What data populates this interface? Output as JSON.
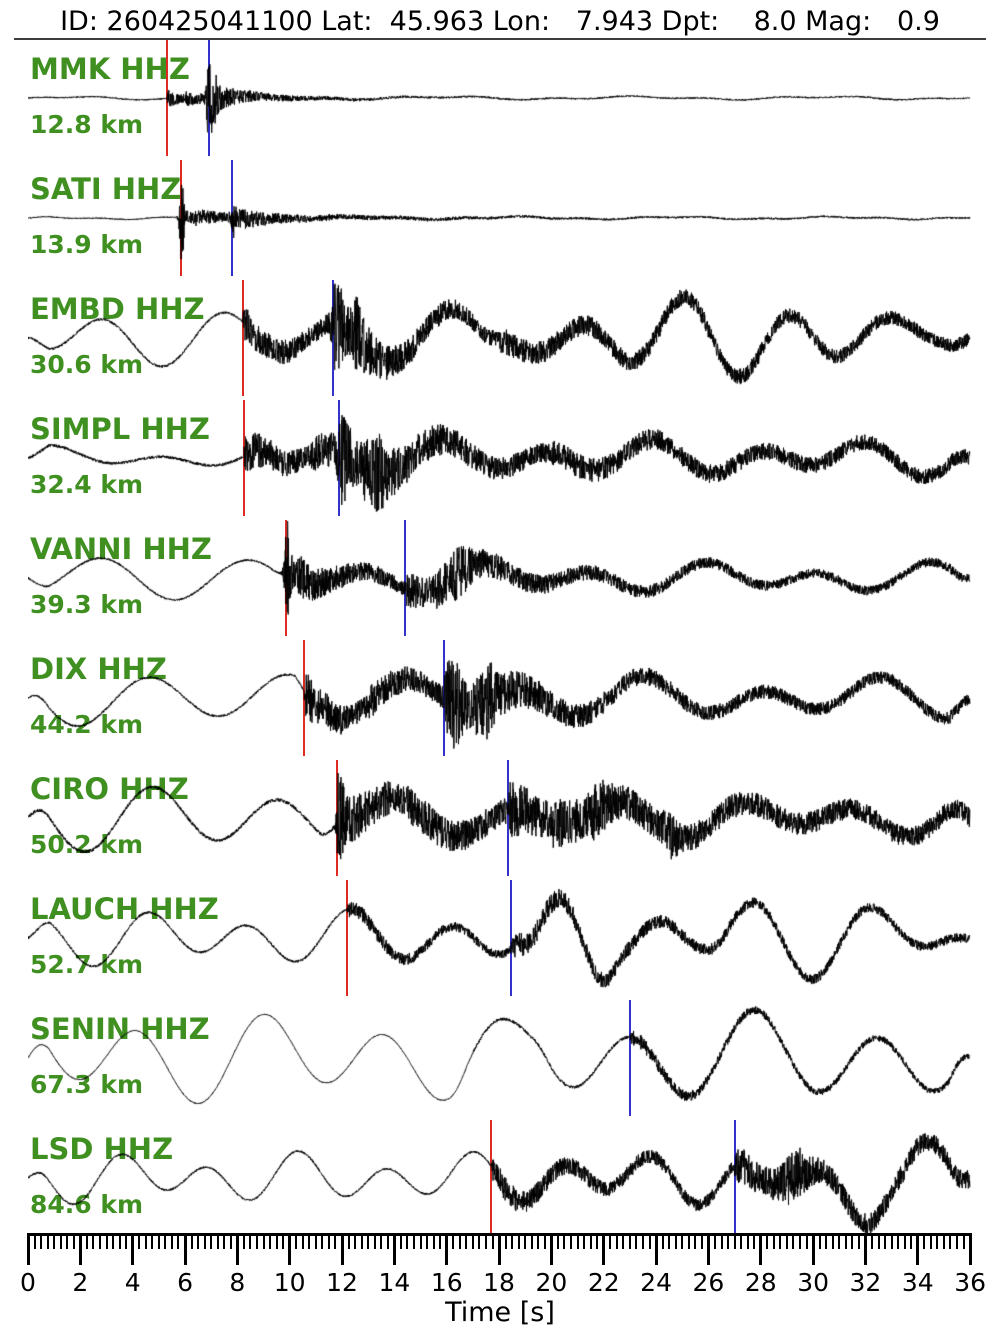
{
  "title": "ID: 260425041100 Lat:  45.963 Lon:   7.943 Dpt:    8.0 Mag:   0.9",
  "event": {
    "id": "260425041100",
    "lat": "45.963",
    "lon": "7.943",
    "depth_km": "8.0",
    "magnitude": "0.9"
  },
  "chart_data": {
    "type": "line",
    "subtype": "seismogram-record-section",
    "xlabel": "Time [s]",
    "xlim": [
      0,
      36
    ],
    "x_ticks": [
      0,
      2,
      4,
      6,
      8,
      10,
      12,
      14,
      16,
      18,
      20,
      22,
      24,
      26,
      28,
      30,
      32,
      34,
      36
    ],
    "x_minor_step": 0.25,
    "grid": false,
    "legend": "none",
    "colors": {
      "trace": "#000000",
      "p_pick": "#e02b24",
      "s_pick": "#3333cc",
      "station_label": "#3f9020",
      "title": "#000000"
    },
    "stations": [
      {
        "label": "MMK HHZ",
        "distance": "12.8 km",
        "distance_km": 12.8,
        "p_pick_s": 5.3,
        "s_pick_s": 6.9,
        "waveform": {
          "lp": [
            {
              "amp": 1.2,
              "period": 7.3,
              "phase": 0.5
            },
            {
              "amp": 0.8,
              "period": 2.9,
              "phase": 2.1
            }
          ],
          "hf": [
            {
              "t0": 0,
              "t1": 5.3,
              "amp": 0.7
            },
            {
              "t0": 5.3,
              "t1": 36,
              "amp": 0.8
            }
          ],
          "bursts": [
            {
              "t": 5.3,
              "amp": 9,
              "tau": 0.8
            },
            {
              "t": 6.0,
              "amp": 4,
              "tau": 2.0
            },
            {
              "t": 6.9,
              "amp": 10,
              "tau": 0.7
            },
            {
              "t": 7.2,
              "amp": 4,
              "tau": 3
            }
          ],
          "spikes": [
            {
              "t": 6.93,
              "amp": 48,
              "w": 0.1
            },
            {
              "t": 7.15,
              "amp": 18,
              "w": 0.08
            }
          ]
        }
      },
      {
        "label": "SATI HHZ",
        "distance": "13.9 km",
        "distance_km": 13.9,
        "p_pick_s": 5.85,
        "s_pick_s": 7.8,
        "waveform": {
          "lp": [
            {
              "amp": 1.0,
              "period": 6.1,
              "phase": 1.2
            },
            {
              "amp": 0.6,
              "period": 2.3,
              "phase": 0.3
            }
          ],
          "hf": [
            {
              "t0": 0,
              "t1": 5.85,
              "amp": 0.6
            },
            {
              "t0": 5.85,
              "t1": 36,
              "amp": 0.9
            }
          ],
          "bursts": [
            {
              "t": 5.85,
              "amp": 8,
              "tau": 1.2
            },
            {
              "t": 6.3,
              "amp": 3,
              "tau": 4
            },
            {
              "t": 7.8,
              "amp": 7,
              "tau": 0.9
            },
            {
              "t": 8.1,
              "amp": 2.5,
              "tau": 5
            }
          ],
          "spikes": [
            {
              "t": 5.88,
              "amp": 55,
              "w": 0.09
            },
            {
              "t": 7.85,
              "amp": 12,
              "w": 0.1
            }
          ]
        }
      },
      {
        "label": "EMBD HHZ",
        "distance": "30.6 km",
        "distance_km": 30.6,
        "p_pick_s": 8.2,
        "s_pick_s": 11.65,
        "waveform": {
          "lp": [
            {
              "amp": 20,
              "period": 4.4,
              "phase": 3.6
            },
            {
              "amp": 9,
              "period": 7.9,
              "phase": 1.0
            },
            {
              "amp": 14,
              "period": 3.5,
              "phase": 0.2,
              "t0": 17,
              "t1": 36
            }
          ],
          "hf": [
            {
              "t0": 0,
              "t1": 8.2,
              "amp": 1.2
            },
            {
              "t0": 8.2,
              "t1": 36,
              "amp": 6
            }
          ],
          "bursts": [
            {
              "t": 8.2,
              "amp": 12,
              "tau": 2.5
            },
            {
              "t": 11.65,
              "amp": 22,
              "tau": 1.1
            },
            {
              "t": 12.3,
              "amp": 12,
              "tau": 3
            },
            {
              "t": 18,
              "amp": 5,
              "tau": 10
            }
          ],
          "spikes": [
            {
              "t": 11.8,
              "amp": 18,
              "w": 0.3
            },
            {
              "t": 12.6,
              "amp": 14,
              "w": 0.2
            }
          ]
        }
      },
      {
        "label": "SIMPL HHZ",
        "distance": "32.4 km",
        "distance_km": 32.4,
        "p_pick_s": 8.25,
        "s_pick_s": 11.9,
        "waveform": {
          "lp": [
            {
              "amp": 8,
              "period": 4.6,
              "phase": 0.8,
              "t0": 0,
              "t1": 9
            },
            {
              "amp": 12,
              "period": 4.1,
              "phase": 2.6,
              "t0": 9,
              "t1": 36
            },
            {
              "amp": 7,
              "period": 7.3,
              "phase": 0.1
            }
          ],
          "hf": [
            {
              "t0": 0,
              "t1": 8.25,
              "amp": 1.4
            },
            {
              "t0": 8.25,
              "t1": 36,
              "amp": 7
            }
          ],
          "bursts": [
            {
              "t": 8.25,
              "amp": 14,
              "tau": 2
            },
            {
              "t": 10.8,
              "amp": 8,
              "tau": 4
            },
            {
              "t": 11.9,
              "amp": 22,
              "tau": 1.4
            },
            {
              "t": 12.8,
              "amp": 10,
              "tau": 4
            },
            {
              "t": 20,
              "amp": 4,
              "tau": 8
            }
          ],
          "spikes": [
            {
              "t": 11.95,
              "amp": 20,
              "w": 0.25
            },
            {
              "t": 13.4,
              "amp": 14,
              "w": 0.2
            }
          ]
        }
      },
      {
        "label": "VANNI HHZ",
        "distance": "39.3 km",
        "distance_km": 39.3,
        "p_pick_s": 9.85,
        "s_pick_s": 14.4,
        "waveform": {
          "lp": [
            {
              "amp": 16,
              "period": 5.3,
              "phase": 4.4,
              "t0": 0,
              "t1": 10
            },
            {
              "amp": 10,
              "period": 4.3,
              "phase": 1.5,
              "t0": 10,
              "t1": 36
            },
            {
              "amp": 6,
              "period": 8.3,
              "phase": 0.3
            }
          ],
          "hf": [
            {
              "t0": 0,
              "t1": 9.85,
              "amp": 1.0
            },
            {
              "t0": 9.85,
              "t1": 36,
              "amp": 4.5
            }
          ],
          "bursts": [
            {
              "t": 9.85,
              "amp": 14,
              "tau": 1.2
            },
            {
              "t": 10.3,
              "amp": 8,
              "tau": 4
            },
            {
              "t": 14.4,
              "amp": 12,
              "tau": 2
            },
            {
              "t": 15.5,
              "amp": 8,
              "tau": 5
            }
          ],
          "spikes": [
            {
              "t": 9.9,
              "amp": 42,
              "w": 0.12
            },
            {
              "t": 16.5,
              "amp": 10,
              "w": 0.4
            }
          ]
        }
      },
      {
        "label": "DIX HHZ",
        "distance": "44.2 km",
        "distance_km": 44.2,
        "p_pick_s": 10.55,
        "s_pick_s": 15.9,
        "waveform": {
          "lp": [
            {
              "amp": 26,
              "period": 5.6,
              "phase": 2.8,
              "t0": 0,
              "t1": 11
            },
            {
              "amp": 14,
              "period": 4.6,
              "phase": 0.9,
              "t0": 11,
              "t1": 36
            },
            {
              "amp": 8,
              "period": 8.1,
              "phase": 2.0
            }
          ],
          "hf": [
            {
              "t0": 0,
              "t1": 10.55,
              "amp": 1.1
            },
            {
              "t0": 10.55,
              "t1": 36,
              "amp": 6
            }
          ],
          "bursts": [
            {
              "t": 10.55,
              "amp": 18,
              "tau": 2
            },
            {
              "t": 13,
              "amp": 6,
              "tau": 6
            },
            {
              "t": 15.9,
              "amp": 22,
              "tau": 1.6
            },
            {
              "t": 17,
              "amp": 10,
              "tau": 4
            }
          ],
          "spikes": [
            {
              "t": 16.3,
              "amp": 18,
              "w": 0.3
            },
            {
              "t": 17.6,
              "amp": 14,
              "w": 0.25
            }
          ]
        }
      },
      {
        "label": "CIRO HHZ",
        "distance": "50.2 km",
        "distance_km": 50.2,
        "p_pick_s": 11.8,
        "s_pick_s": 18.35,
        "waveform": {
          "lp": [
            {
              "amp": 26,
              "period": 4.9,
              "phase": 1.9,
              "t0": 0,
              "t1": 12
            },
            {
              "amp": 13,
              "period": 4.4,
              "phase": 0.4,
              "t0": 12,
              "t1": 36
            },
            {
              "amp": 8,
              "period": 7.7,
              "phase": 3.1
            }
          ],
          "hf": [
            {
              "t0": 0,
              "t1": 11.8,
              "amp": 1.6
            },
            {
              "t0": 11.8,
              "t1": 36,
              "amp": 9
            }
          ],
          "bursts": [
            {
              "t": 11.8,
              "amp": 20,
              "tau": 2.2
            },
            {
              "t": 14.5,
              "amp": 6,
              "tau": 6
            },
            {
              "t": 18.35,
              "amp": 16,
              "tau": 2
            },
            {
              "t": 20,
              "amp": 8,
              "tau": 6
            }
          ],
          "spikes": [
            {
              "t": 11.9,
              "amp": 26,
              "w": 0.15
            },
            {
              "t": 21.8,
              "amp": 12,
              "w": 0.4
            },
            {
              "t": 24.5,
              "amp": 10,
              "w": 0.3
            }
          ]
        }
      },
      {
        "label": "LAUCH HHZ",
        "distance": "52.7 km",
        "distance_km": 52.7,
        "p_pick_s": 12.2,
        "s_pick_s": 18.45,
        "waveform": {
          "lp": [
            {
              "amp": 20,
              "period": 3.9,
              "phase": 0.6
            },
            {
              "amp": 9,
              "period": 6.9,
              "phase": 2.8
            },
            {
              "amp": 16,
              "period": 2.9,
              "phase": 1.1,
              "t0": 18.5,
              "t1": 23
            },
            {
              "amp": 14,
              "period": 5.3,
              "phase": 0.2,
              "t0": 26,
              "t1": 36
            }
          ],
          "hf": [
            {
              "t0": 0,
              "t1": 12.2,
              "amp": 1.2
            },
            {
              "t0": 12.2,
              "t1": 18.45,
              "amp": 3.5
            },
            {
              "t0": 18.45,
              "t1": 36,
              "amp": 4.5
            }
          ],
          "bursts": [
            {
              "t": 12.2,
              "amp": 5,
              "tau": 3
            },
            {
              "t": 18.45,
              "amp": 8,
              "tau": 4
            }
          ],
          "spikes": []
        }
      },
      {
        "label": "SENIN HHZ",
        "distance": "67.3 km",
        "distance_km": 67.3,
        "p_pick_s": null,
        "s_pick_s": 23.0,
        "waveform": {
          "lp": [
            {
              "amp": 34,
              "period": 4.7,
              "phase": 2.2
            },
            {
              "amp": 14,
              "period": 8.9,
              "phase": 0.7
            },
            {
              "amp": 10,
              "period": 3.4,
              "phase": 1.6,
              "t0": 16,
              "t1": 20
            }
          ],
          "hf": [
            {
              "t0": 0,
              "t1": 17,
              "amp": 0.5
            },
            {
              "t0": 17,
              "t1": 23,
              "amp": 1.5
            },
            {
              "t0": 23,
              "t1": 36,
              "amp": 3
            }
          ],
          "bursts": [
            {
              "t": 23.0,
              "amp": 5,
              "tau": 3
            }
          ],
          "spikes": []
        }
      },
      {
        "label": "LSD HHZ",
        "distance": "84.6 km",
        "distance_km": 84.6,
        "p_pick_s": 17.7,
        "s_pick_s": 27.0,
        "waveform": {
          "lp": [
            {
              "amp": 18,
              "period": 3.4,
              "phase": 1.4
            },
            {
              "amp": 9,
              "period": 6.1,
              "phase": 3.3
            },
            {
              "amp": 16,
              "period": 4.9,
              "phase": 0.9,
              "t0": 27,
              "t1": 36
            },
            {
              "amp": 24,
              "period": 6.4,
              "phase": -0.39,
              "t0": 29,
              "t1": 33.5
            }
          ],
          "hf": [
            {
              "t0": 0,
              "t1": 17.7,
              "amp": 1.0
            },
            {
              "t0": 17.7,
              "t1": 27,
              "amp": 6
            },
            {
              "t0": 27,
              "t1": 36,
              "amp": 9
            }
          ],
          "bursts": [
            {
              "t": 17.7,
              "amp": 8,
              "tau": 3
            },
            {
              "t": 27.0,
              "amp": 10,
              "tau": 3
            }
          ],
          "spikes": [
            {
              "t": 29.3,
              "amp": 14,
              "w": 0.5
            }
          ]
        }
      }
    ]
  }
}
